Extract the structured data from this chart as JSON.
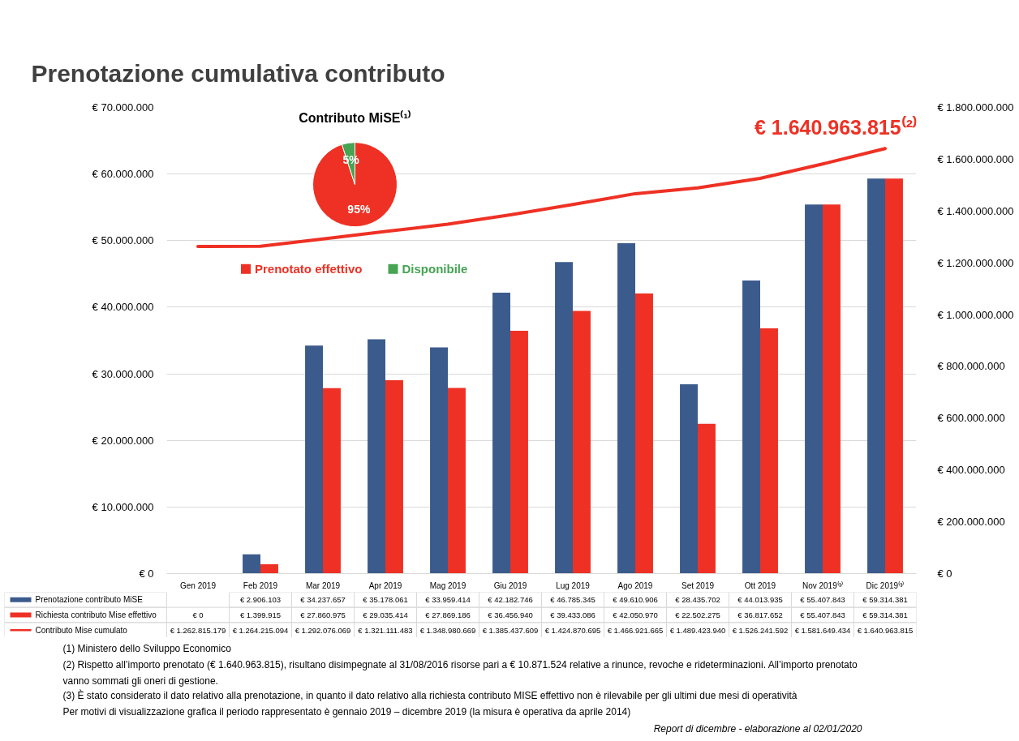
{
  "chart_data": [
    {
      "type": "bar",
      "title": "Prenotazione cumulativa contributo",
      "categories": [
        "Gen 2019",
        "Feb 2019",
        "Mar 2019",
        "Apr 2019",
        "Mag 2019",
        "Giu 2019",
        "Lug 2019",
        "Ago 2019",
        "Set 2019",
        "Ott 2019",
        "Nov 2019⁽³⁾",
        "Dic 2019⁽³⁾"
      ],
      "series": [
        {
          "name": "Prenotazione contributo MiSE",
          "color": "#3b5b8c",
          "values": [
            null,
            2906103,
            34237657,
            35178061,
            33959414,
            42182746,
            46785345,
            49610906,
            28435702,
            44013935,
            55407843,
            59314381
          ],
          "value_labels": [
            null,
            "€ 2.906.103",
            "€ 34.237.657",
            "€ 35.178.061",
            "€ 33.959.414",
            "€ 42.182.746",
            "€ 46.785.345",
            "€ 49.610.906",
            "€ 28.435.702",
            "€ 44.013.935",
            "€ 55.407.843",
            "€ 59.314.381"
          ]
        },
        {
          "name": "Richiesta contributo Mise effettivo",
          "color": "#ee3124",
          "values": [
            0,
            1399915,
            27860975,
            29035414,
            27869186,
            36456940,
            39433086,
            42050970,
            22502275,
            36817652,
            55407843,
            59314381
          ],
          "value_labels": [
            "€ 0",
            "€ 1.399.915",
            "€ 27.860.975",
            "€ 29.035.414",
            "€ 27.869.186",
            "€ 36.456.940",
            "€ 39.433.086",
            "€ 42.050.970",
            "€ 22.502.275",
            "€ 36.817.652",
            "€ 55.407.843",
            "€ 59.314.381"
          ]
        },
        {
          "name": "Contributo Mise cumulato",
          "type": "line",
          "axis": "y2",
          "color": "#ee3124",
          "values": [
            1262815179,
            1264215094,
            1292076069,
            1321111483,
            1348980669,
            1385437609,
            1424870695,
            1466921665,
            1489423940,
            1526241592,
            1581649434,
            1640963815
          ],
          "value_labels": [
            "€ 1.262.815.179",
            "€ 1.264.215.094",
            "€ 1.292.076.069",
            "€ 1.321.111.483",
            "€ 1.348.980.669",
            "€ 1.385.437.609",
            "€ 1.424.870.695",
            "€ 1.466.921.665",
            "€ 1.489.423.940",
            "€ 1.526.241.592",
            "€ 1.581.649.434",
            "€ 1.640.963.815"
          ]
        }
      ],
      "ylim": [
        0,
        70000000
      ],
      "yticks": [
        {
          "value": 0,
          "label": "€ 0"
        },
        {
          "value": 10000000,
          "label": "€ 10.000.000"
        },
        {
          "value": 20000000,
          "label": "€ 20.000.000"
        },
        {
          "value": 30000000,
          "label": "€ 30.000.000"
        },
        {
          "value": 40000000,
          "label": "€ 40.000.000"
        },
        {
          "value": 50000000,
          "label": "€ 50.000.000"
        },
        {
          "value": 60000000,
          "label": "€ 60.000.000"
        },
        {
          "value": 70000000,
          "label": "€ 70.000.000"
        }
      ],
      "y2lim": [
        0,
        1800000000
      ],
      "y2ticks": [
        {
          "value": 0,
          "label": "€ 0"
        },
        {
          "value": 200000000,
          "label": "€ 200.000.000"
        },
        {
          "value": 400000000,
          "label": "€ 400.000.000"
        },
        {
          "value": 600000000,
          "label": "€ 600.000.000"
        },
        {
          "value": 800000000,
          "label": "€ 800.000.000"
        },
        {
          "value": 1000000000,
          "label": "€ 1.000.000.000"
        },
        {
          "value": 1200000000,
          "label": "€ 1.200.000.000"
        },
        {
          "value": 1400000000,
          "label": "€ 1.400.000.000"
        },
        {
          "value": 1600000000,
          "label": "€ 1.600.000.000"
        },
        {
          "value": 1800000000,
          "label": "€ 1.800.000.000"
        }
      ],
      "grid": "y",
      "legend": "bottom",
      "annotations": [
        "€ 1.640.963.815⁽²⁾",
        "(1) Ministero dello Sviluppo Economico",
        "(2) Rispetto all’importo prenotato (€ 1.640.963.815), risultano disimpegnate al 31/08/2016 risorse pari a € 10.871.524 relative a rinunce, revoche e rideterminazioni. All’importo prenotato vanno sommati gli oneri di gestione.",
        "(3) È stato considerato il dato relativo alla prenotazione, in quanto il dato relativo alla richiesta contributo MISE effettivo non è rilevabile per gli ultimi due mesi di operatività",
        "Per motivi di visualizzazione grafica il periodo rappresentato è gennaio 2019 – dicembre 2019 (la misura è operativa da aprile 2014)",
        "Report di dicembre - elaborazione al 02/01/2020"
      ]
    },
    {
      "type": "pie",
      "title": "Contributo MiSE⁽¹⁾",
      "categories": [
        "Prenotato effettivo",
        "Disponibile"
      ],
      "values": [
        95,
        5
      ],
      "colors": [
        "#ee3124",
        "#46a453"
      ],
      "value_labels": [
        "95%",
        "5%"
      ],
      "legend": "bottom"
    }
  ]
}
